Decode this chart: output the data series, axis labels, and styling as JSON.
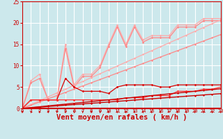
{
  "title": "",
  "xlabel": "Vent moyen/en rafales ( km/h )",
  "xlabel_color": "#cc0000",
  "xlabel_fontsize": 7.5,
  "background_color": "#cce8ec",
  "grid_color": "#ffffff",
  "tick_label_color": "#cc0000",
  "xlim": [
    0,
    23
  ],
  "ylim": [
    0,
    25
  ],
  "yticks": [
    0,
    5,
    10,
    15,
    20,
    25
  ],
  "xticks": [
    0,
    1,
    2,
    3,
    4,
    5,
    6,
    7,
    8,
    9,
    10,
    11,
    12,
    13,
    14,
    15,
    16,
    17,
    18,
    19,
    20,
    21,
    22,
    23
  ],
  "series": [
    {
      "x": [
        0,
        1,
        2,
        3,
        4,
        5,
        6,
        7,
        8,
        9,
        10,
        11,
        12,
        13,
        14,
        15,
        16,
        17,
        18,
        19,
        20,
        21,
        22,
        23
      ],
      "y": [
        0,
        6.5,
        8,
        2,
        2,
        15,
        5.5,
        8,
        8,
        10,
        15,
        19.5,
        15,
        19.5,
        16,
        17,
        17,
        17,
        19.5,
        19.5,
        19.5,
        21,
        21,
        21
      ],
      "color": "#ffaaaa",
      "lw": 0.9,
      "marker": "D",
      "ms": 1.8
    },
    {
      "x": [
        0,
        1,
        2,
        3,
        4,
        5,
        6,
        7,
        8,
        9,
        10,
        11,
        12,
        13,
        14,
        15,
        16,
        17,
        18,
        19,
        20,
        21,
        22,
        23
      ],
      "y": [
        0,
        6,
        7,
        2,
        2,
        14,
        5,
        7.5,
        7.5,
        9.5,
        14.5,
        19,
        14.5,
        19,
        15.5,
        16.5,
        16.5,
        16.5,
        19,
        19,
        19,
        20.5,
        20.5,
        20.5
      ],
      "color": "#ff8888",
      "lw": 0.9,
      "marker": "D",
      "ms": 1.8
    },
    {
      "x": [
        0,
        1,
        2,
        3,
        4,
        5,
        6,
        7,
        8,
        9,
        10,
        11,
        12,
        13,
        14,
        15,
        16,
        17,
        18,
        19,
        20,
        21,
        22,
        23
      ],
      "y": [
        0,
        0.9,
        1.8,
        2.7,
        3.6,
        4.5,
        5.4,
        6.3,
        7.2,
        8.1,
        9.0,
        9.9,
        10.8,
        11.7,
        12.6,
        13.5,
        14.4,
        15.3,
        16.2,
        17.1,
        18.0,
        18.9,
        19.8,
        20.7
      ],
      "color": "#ffaaaa",
      "lw": 0.9,
      "marker": "D",
      "ms": 1.5
    },
    {
      "x": [
        0,
        1,
        2,
        3,
        4,
        5,
        6,
        7,
        8,
        9,
        10,
        11,
        12,
        13,
        14,
        15,
        16,
        17,
        18,
        19,
        20,
        21,
        22,
        23
      ],
      "y": [
        0,
        0.75,
        1.5,
        2.25,
        3.0,
        3.75,
        4.5,
        5.25,
        6.0,
        6.75,
        7.5,
        8.25,
        9.0,
        9.75,
        10.5,
        11.25,
        12.0,
        12.75,
        13.5,
        14.25,
        15.0,
        15.75,
        16.5,
        17.25
      ],
      "color": "#ff8888",
      "lw": 0.9,
      "marker": "D",
      "ms": 1.5
    },
    {
      "x": [
        0,
        1,
        2,
        3,
        4,
        5,
        6,
        7,
        8,
        9,
        10,
        11,
        12,
        13,
        14,
        15,
        16,
        17,
        18,
        19,
        20,
        21,
        22,
        23
      ],
      "y": [
        0,
        2,
        2,
        2,
        2,
        7,
        5,
        4,
        4,
        4,
        3.5,
        5,
        5.5,
        5.5,
        5.5,
        5.5,
        5,
        5,
        5.5,
        5.5,
        5.5,
        5.5,
        5.5,
        5.5
      ],
      "color": "#dd0000",
      "lw": 0.9,
      "marker": "D",
      "ms": 1.8
    },
    {
      "x": [
        0,
        1,
        2,
        3,
        4,
        5,
        6,
        7,
        8,
        9,
        10,
        11,
        12,
        13,
        14,
        15,
        16,
        17,
        18,
        19,
        20,
        21,
        22,
        23
      ],
      "y": [
        0,
        2,
        2,
        2,
        2,
        2,
        2,
        2,
        2,
        2,
        2,
        2,
        2.5,
        2.5,
        2.5,
        3,
        3,
        3,
        4,
        4,
        4,
        4.5,
        4.5,
        5
      ],
      "color": "#ff3333",
      "lw": 0.9,
      "marker": "D",
      "ms": 1.8
    },
    {
      "x": [
        0,
        1,
        2,
        3,
        4,
        5,
        6,
        7,
        8,
        9,
        10,
        11,
        12,
        13,
        14,
        15,
        16,
        17,
        18,
        19,
        20,
        21,
        22,
        23
      ],
      "y": [
        0,
        0.2,
        0.4,
        0.6,
        0.8,
        1.0,
        1.2,
        1.4,
        1.6,
        1.8,
        2.0,
        2.2,
        2.4,
        2.6,
        2.8,
        3.0,
        3.2,
        3.4,
        3.6,
        3.8,
        4.0,
        4.2,
        4.4,
        4.6
      ],
      "color": "#cc0000",
      "lw": 1.0,
      "marker": "D",
      "ms": 1.5
    },
    {
      "x": [
        0,
        1,
        2,
        3,
        4,
        5,
        6,
        7,
        8,
        9,
        10,
        11,
        12,
        13,
        14,
        15,
        16,
        17,
        18,
        19,
        20,
        21,
        22,
        23
      ],
      "y": [
        0,
        0.15,
        0.3,
        0.45,
        0.6,
        0.75,
        0.9,
        1.05,
        1.2,
        1.35,
        1.5,
        1.65,
        1.8,
        1.95,
        2.1,
        2.25,
        2.4,
        2.55,
        2.7,
        2.85,
        3.0,
        3.15,
        3.3,
        3.45
      ],
      "color": "#cc0000",
      "lw": 1.0,
      "marker": "D",
      "ms": 1.5
    }
  ],
  "arrow_color": "#cc0000",
  "bottom_line_color": "#cc0000"
}
